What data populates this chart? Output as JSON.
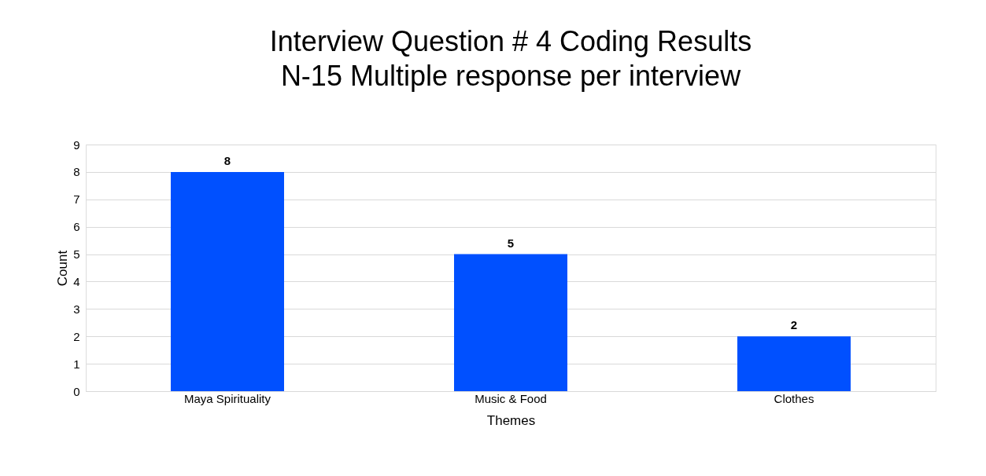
{
  "chart_data": {
    "type": "bar",
    "title": "Interview Question # 4 Coding Results",
    "subtitle": "N-15 Multiple response per interview",
    "xlabel": "Themes",
    "ylabel": "Count",
    "categories": [
      "Maya Spirituality",
      "Music & Food",
      "Clothes"
    ],
    "values": [
      8,
      5,
      2
    ],
    "color": "#0050ff",
    "ylim": [
      0,
      9
    ],
    "yticks": [
      0,
      1,
      2,
      3,
      4,
      5,
      6,
      7,
      8,
      9
    ],
    "grid": "y",
    "data_labels": true
  }
}
